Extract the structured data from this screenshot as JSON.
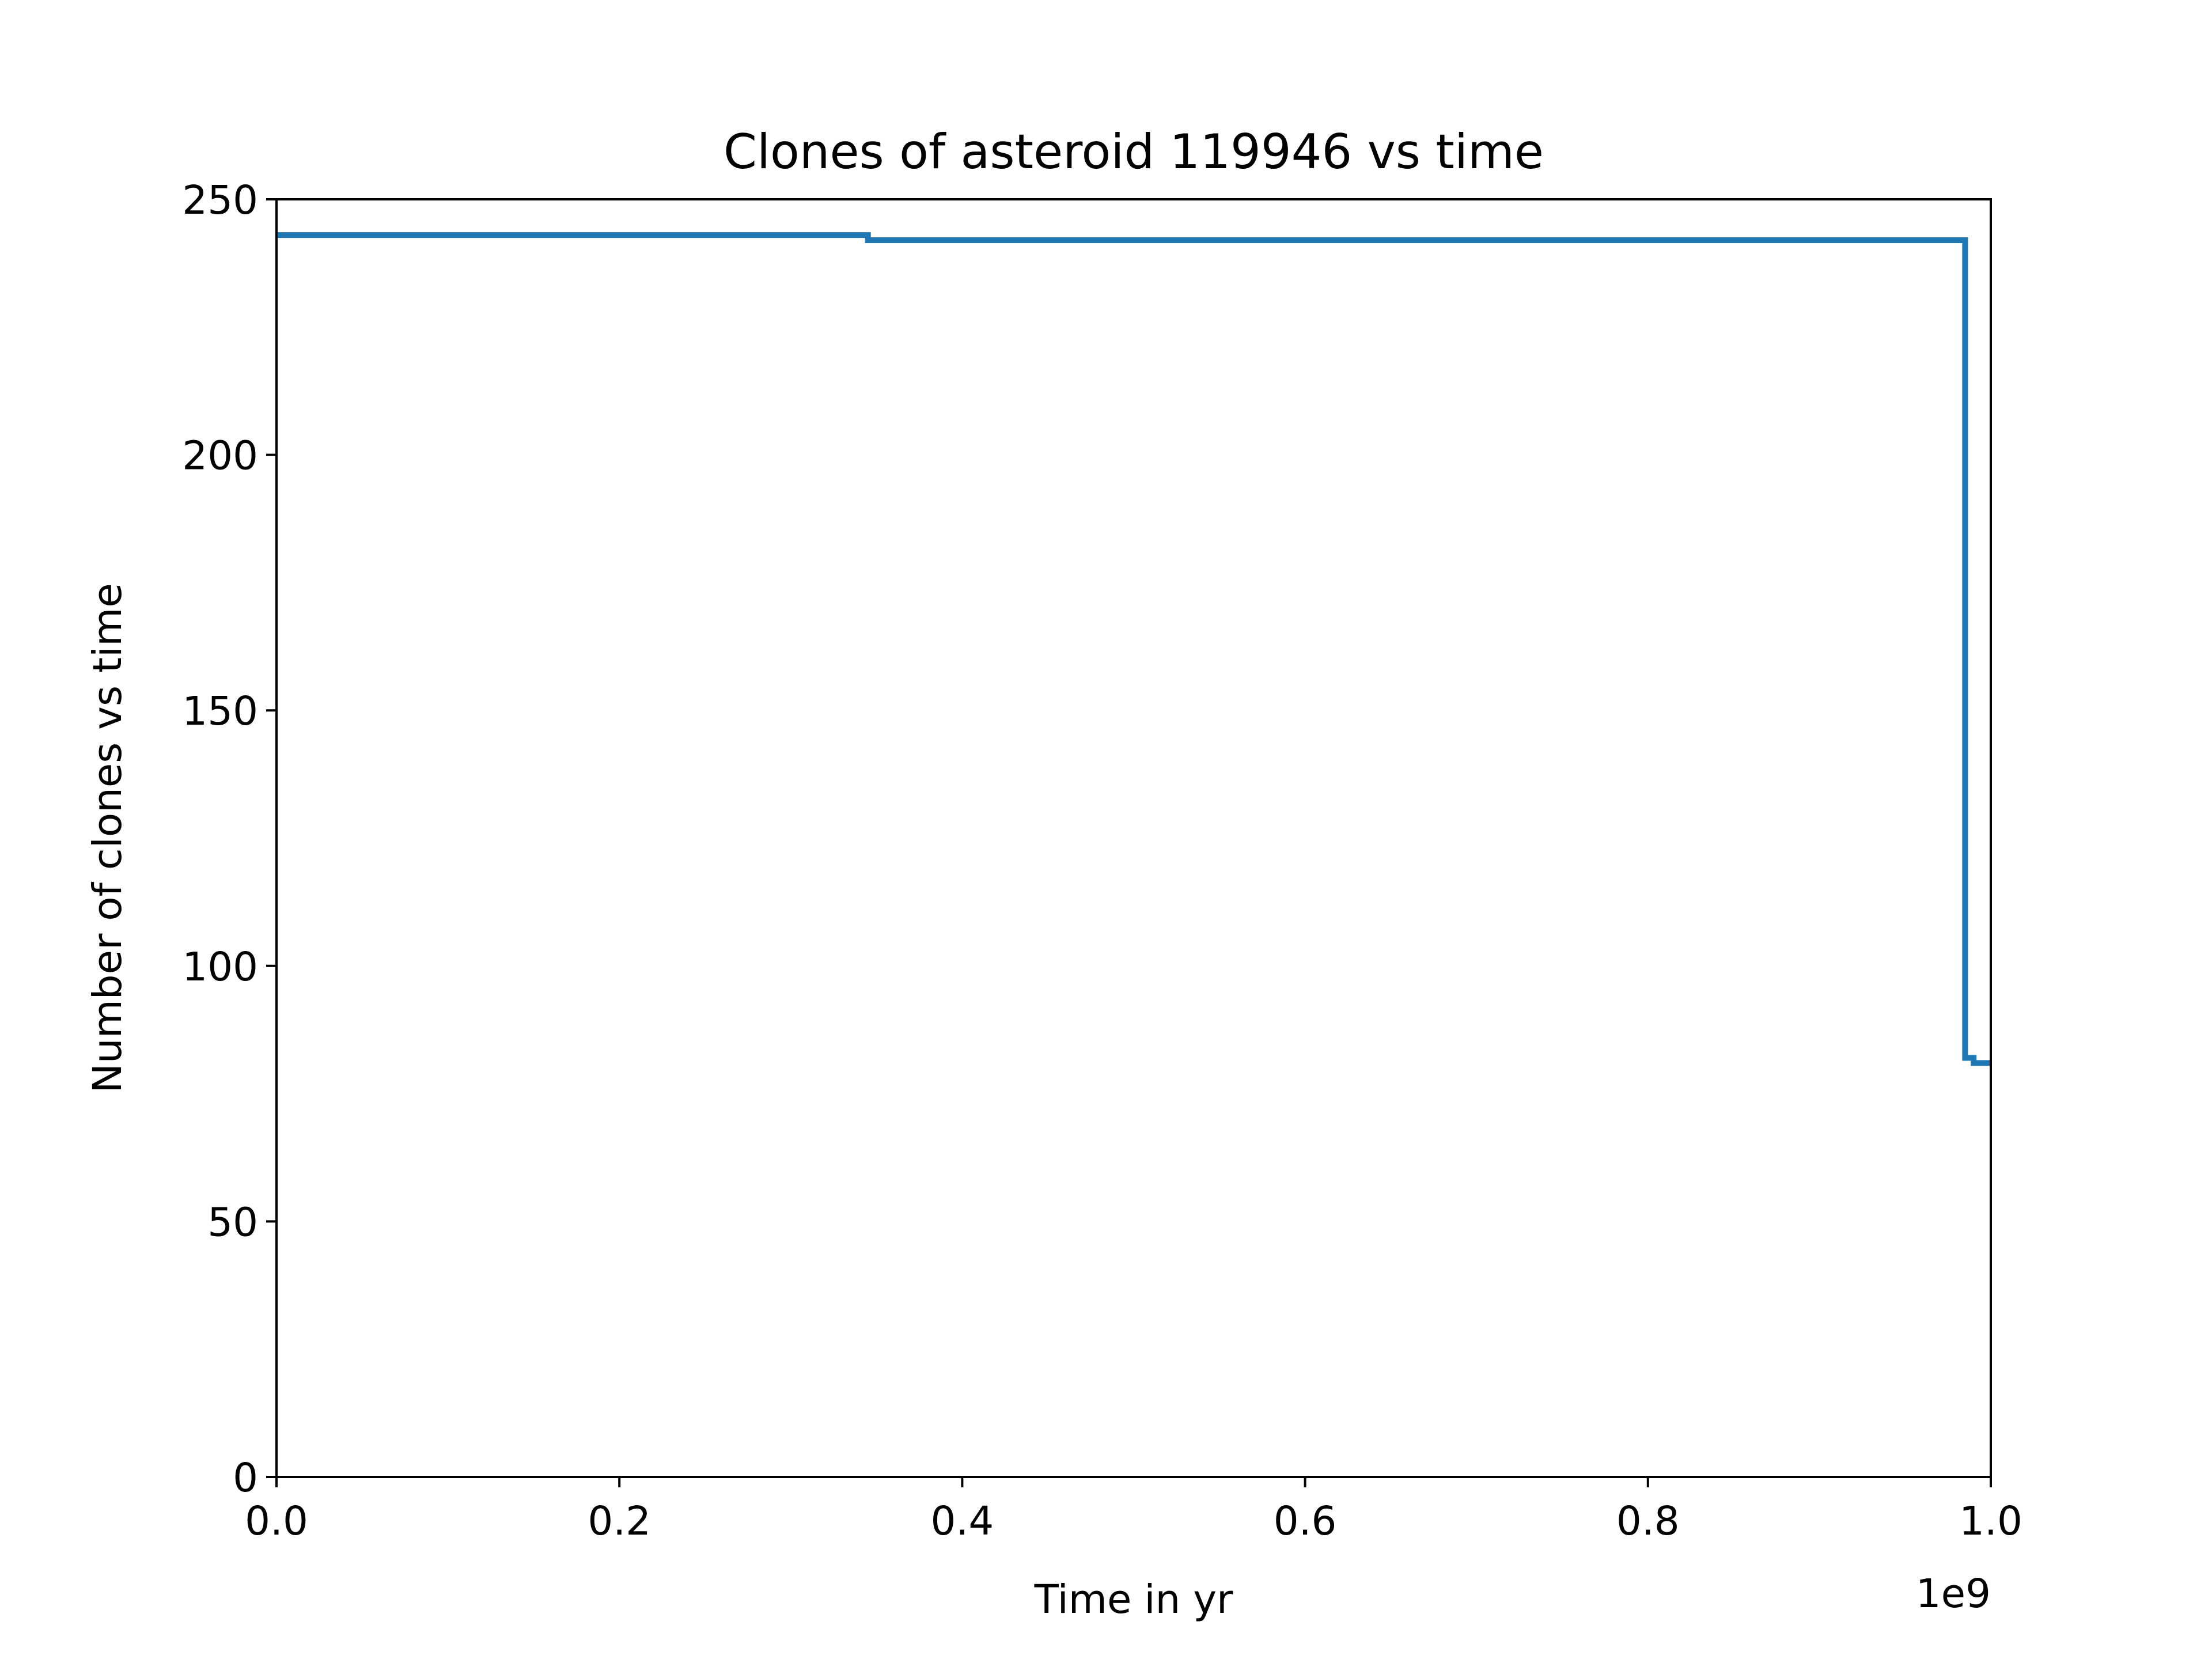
{
  "chart_data": {
    "type": "line",
    "title": "Clones of asteroid 119946 vs time",
    "xlabel": "Time in yr",
    "ylabel": "Number of clones vs time",
    "x_offset_label": "1e9",
    "xlim": [
      0.0,
      1.0
    ],
    "ylim": [
      0,
      250
    ],
    "x_scale_multiplier": 1000000000,
    "xticks": [
      0.0,
      0.2,
      0.4,
      0.6,
      0.8,
      1.0
    ],
    "xtick_labels": [
      "0.0",
      "0.2",
      "0.4",
      "0.6",
      "0.8",
      "1.0"
    ],
    "yticks": [
      0,
      50,
      100,
      150,
      200,
      250
    ],
    "ytick_labels": [
      "0",
      "50",
      "100",
      "150",
      "200",
      "250"
    ],
    "grid": false,
    "step": true,
    "series": [
      {
        "color": "#1f77b4",
        "x": [
          0.0,
          0.345,
          0.985,
          0.99,
          1.0
        ],
        "y": [
          243,
          242,
          82,
          81,
          81
        ]
      }
    ]
  }
}
